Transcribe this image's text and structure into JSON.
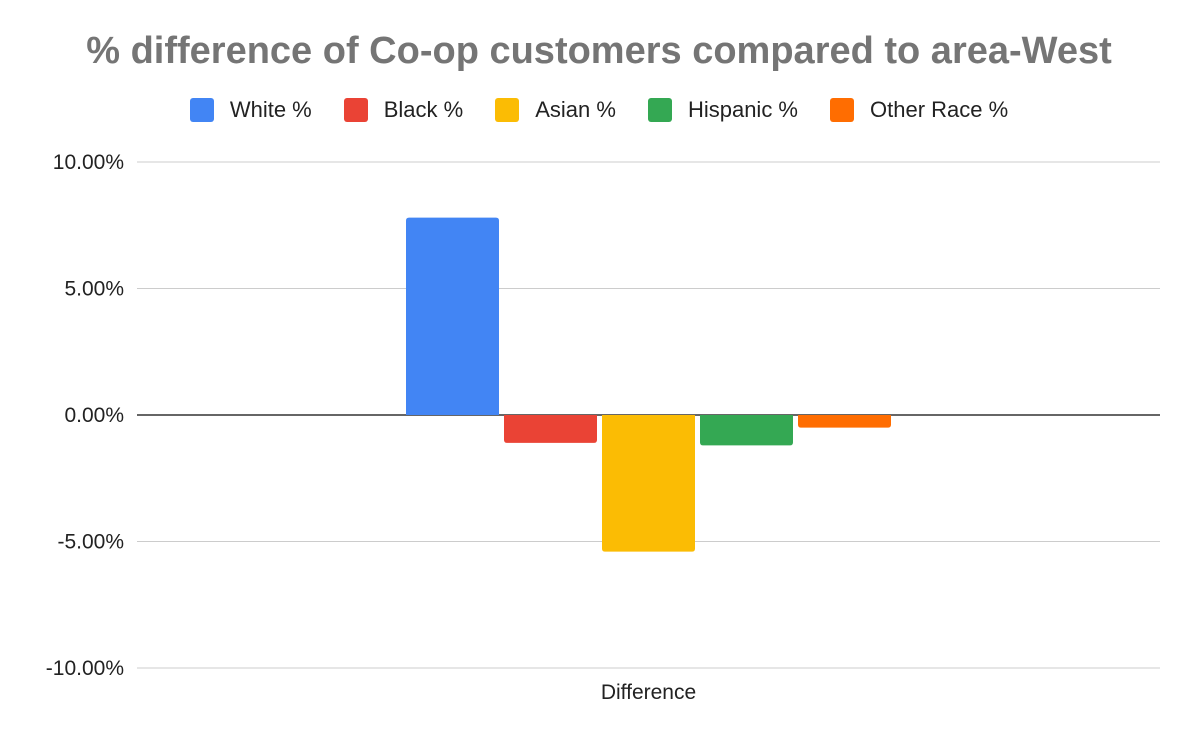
{
  "chart_data": {
    "type": "bar",
    "title": "% difference of Co-op customers compared to area-West",
    "categories": [
      "Difference"
    ],
    "series": [
      {
        "name": "White %",
        "values": [
          7.8
        ],
        "color": "#4285F4"
      },
      {
        "name": "Black %",
        "values": [
          -1.1
        ],
        "color": "#EA4335"
      },
      {
        "name": "Asian %",
        "values": [
          -5.4
        ],
        "color": "#FBBC04"
      },
      {
        "name": "Hispanic %",
        "values": [
          -1.2
        ],
        "color": "#34A853"
      },
      {
        "name": "Other Race %",
        "values": [
          -0.5
        ],
        "color": "#FF6D01"
      }
    ],
    "ylim": [
      -10,
      10
    ],
    "y_ticks": [
      10,
      5,
      0,
      -5,
      -10
    ],
    "y_tick_labels": [
      "10.00%",
      "5.00%",
      "0.00%",
      "-5.00%",
      "-10.00%"
    ],
    "xlabel": "",
    "ylabel": "",
    "grid": true,
    "legend_position": "top"
  }
}
